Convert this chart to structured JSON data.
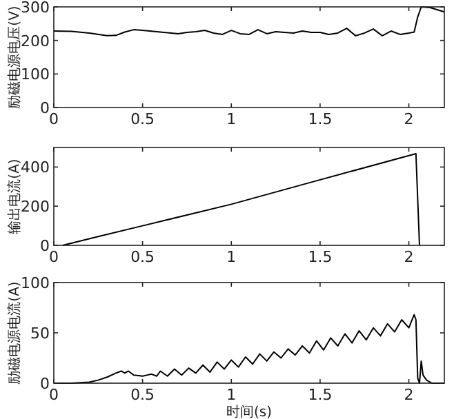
{
  "chart_data": [
    {
      "type": "line",
      "ylabel": "励磁电源电压(V)",
      "xlim": [
        0,
        2.2
      ],
      "xticks": [
        0,
        0.5,
        1,
        1.5,
        2
      ],
      "ylim": [
        0,
        300
      ],
      "yticks": [
        0,
        100,
        200,
        300
      ],
      "color": "#000000",
      "x": [
        0,
        0.1,
        0.2,
        0.3,
        0.35,
        0.4,
        0.45,
        0.5,
        0.6,
        0.7,
        0.75,
        0.8,
        0.85,
        0.9,
        0.95,
        1.0,
        1.05,
        1.1,
        1.15,
        1.2,
        1.25,
        1.3,
        1.35,
        1.4,
        1.45,
        1.5,
        1.55,
        1.6,
        1.65,
        1.7,
        1.75,
        1.8,
        1.85,
        1.9,
        1.95,
        2.0,
        2.03,
        2.05,
        2.07,
        2.12,
        2.2
      ],
      "values": [
        228,
        227,
        222,
        214,
        215,
        225,
        232,
        230,
        225,
        220,
        224,
        226,
        230,
        222,
        218,
        230,
        220,
        218,
        232,
        220,
        226,
        224,
        222,
        228,
        224,
        224,
        218,
        222,
        236,
        214,
        222,
        234,
        214,
        228,
        218,
        222,
        225,
        270,
        300,
        298,
        285
      ]
    },
    {
      "type": "line",
      "ylabel": "输出电流(A)",
      "xlim": [
        0,
        2.2
      ],
      "xticks": [
        0,
        0.5,
        1,
        1.5,
        2
      ],
      "ylim": [
        0,
        500
      ],
      "yticks": [
        0,
        200,
        400
      ],
      "color": "#000000",
      "x": [
        0.05,
        0.25,
        0.5,
        1,
        1.5,
        2.04,
        2.06
      ],
      "values": [
        0,
        45,
        100,
        210,
        335,
        468,
        0
      ]
    },
    {
      "type": "line",
      "ylabel": "励磁电源电流(A)",
      "xlabel": "时间(s)",
      "xlim": [
        0,
        2.2
      ],
      "xticks": [
        0,
        0.5,
        1,
        1.5,
        2
      ],
      "ylim": [
        0,
        100
      ],
      "yticks": [
        0,
        50,
        100
      ],
      "color": "#000000",
      "x": [
        0,
        0.1,
        0.2,
        0.25,
        0.3,
        0.35,
        0.38,
        0.4,
        0.42,
        0.45,
        0.5,
        0.55,
        0.58,
        0.6,
        0.64,
        0.68,
        0.72,
        0.76,
        0.8,
        0.84,
        0.88,
        0.92,
        0.96,
        1.0,
        1.04,
        1.08,
        1.12,
        1.16,
        1.2,
        1.24,
        1.28,
        1.32,
        1.36,
        1.4,
        1.44,
        1.48,
        1.52,
        1.56,
        1.6,
        1.64,
        1.68,
        1.72,
        1.76,
        1.8,
        1.84,
        1.88,
        1.92,
        1.96,
        2.0,
        2.03,
        2.04,
        2.05,
        2.06,
        2.07,
        2.08,
        2.1,
        2.13,
        2.2
      ],
      "values": [
        0,
        0,
        1,
        3,
        6,
        10,
        12,
        10,
        12,
        8,
        7,
        9,
        7,
        12,
        7,
        14,
        8,
        15,
        10,
        18,
        11,
        21,
        14,
        23,
        16,
        26,
        19,
        29,
        22,
        31,
        25,
        34,
        28,
        37,
        30,
        42,
        33,
        45,
        37,
        49,
        40,
        52,
        43,
        55,
        47,
        59,
        51,
        63,
        55,
        68,
        63,
        5,
        0,
        22,
        8,
        3,
        0,
        0
      ]
    }
  ]
}
